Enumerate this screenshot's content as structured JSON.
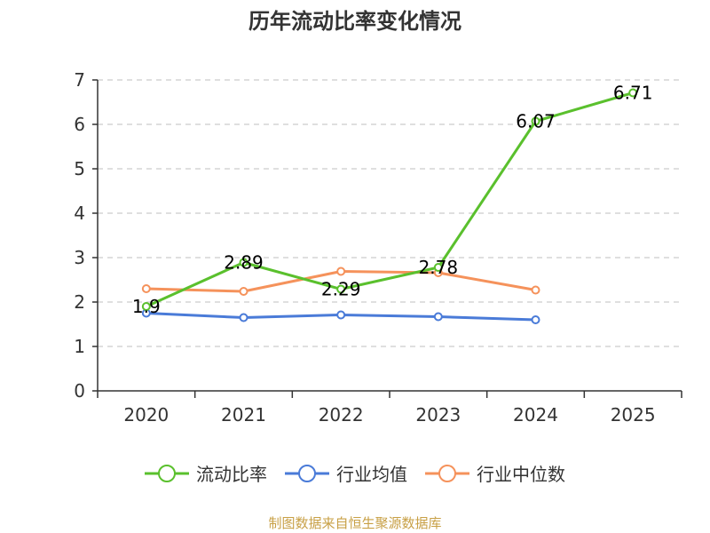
{
  "chart_data": {
    "type": "line",
    "title": "历年流动比率变化情况",
    "categories": [
      "2020",
      "2021",
      "2022",
      "2023",
      "2024",
      "2025"
    ],
    "ylim": [
      0,
      7
    ],
    "yticks": [
      0,
      1,
      2,
      3,
      4,
      5,
      6,
      7
    ],
    "grid": true,
    "legend_position": "bottom",
    "series": [
      {
        "name": "流动比率",
        "color": "#5ac02d",
        "values": [
          1.9,
          2.89,
          2.29,
          2.78,
          6.07,
          6.71
        ],
        "labels": [
          "1.9",
          "2.89",
          "2.29",
          "2.78",
          "6.07",
          "6.71"
        ]
      },
      {
        "name": "行业均值",
        "color": "#4a7bd8",
        "values": [
          1.75,
          1.65,
          1.71,
          1.67,
          1.6,
          null
        ]
      },
      {
        "name": "行业中位数",
        "color": "#f5925b",
        "values": [
          2.3,
          2.24,
          2.69,
          2.66,
          2.27,
          null
        ]
      }
    ]
  },
  "source": "制图数据来自恒生聚源数据库"
}
